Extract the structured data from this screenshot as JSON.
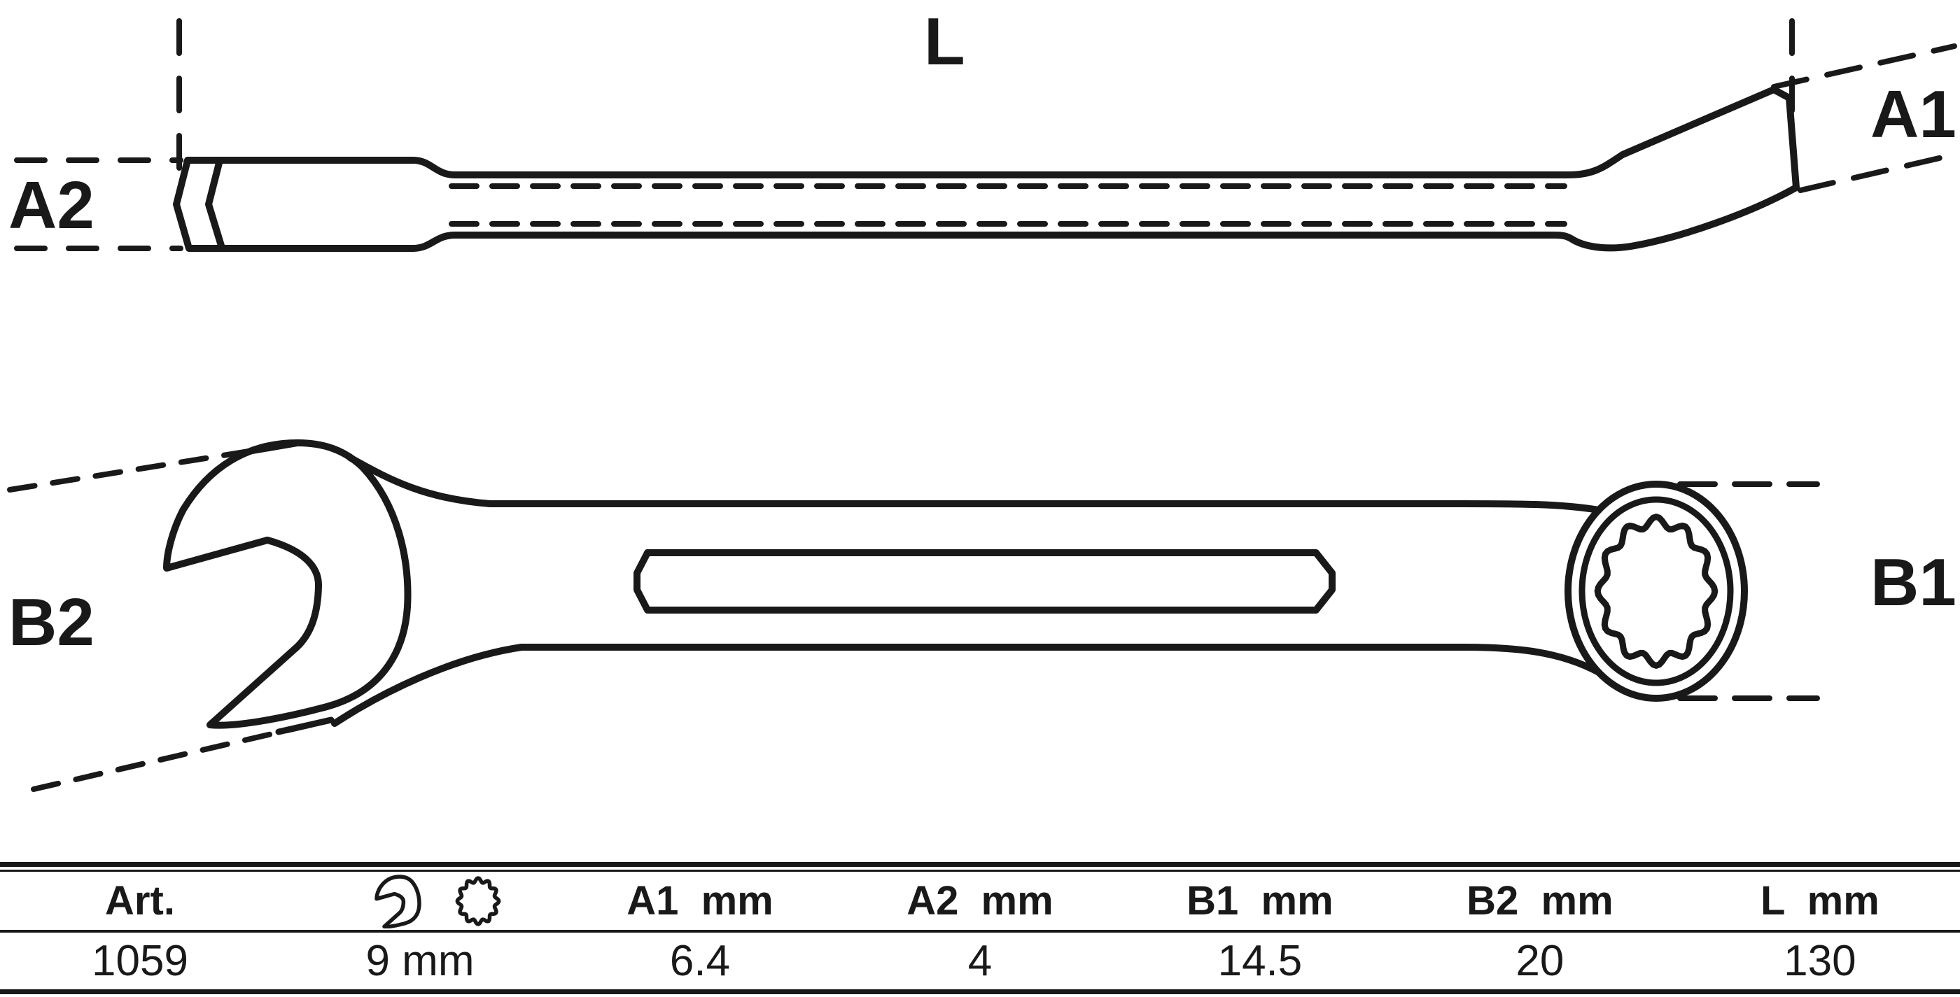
{
  "drawing": {
    "labels": {
      "l": "L",
      "a1": "A1",
      "a2": "A2",
      "b1": "B1",
      "b2": "B2"
    }
  },
  "table": {
    "headers": {
      "art": "Art.",
      "a1": "A1  mm",
      "a2": "A2  mm",
      "b1": "B1  mm",
      "b2": "B2  mm",
      "l": "L  mm"
    },
    "icons": {
      "open_end": "open-end-wrench-icon",
      "ring": "ring-12point-icon"
    },
    "row": {
      "art": "1059",
      "size": "9 mm",
      "a1": "6.4",
      "a2": "4",
      "b1": "14.5",
      "b2": "20",
      "l": "130"
    }
  },
  "colors": {
    "ink": "#191919",
    "background": "#ffffff"
  }
}
